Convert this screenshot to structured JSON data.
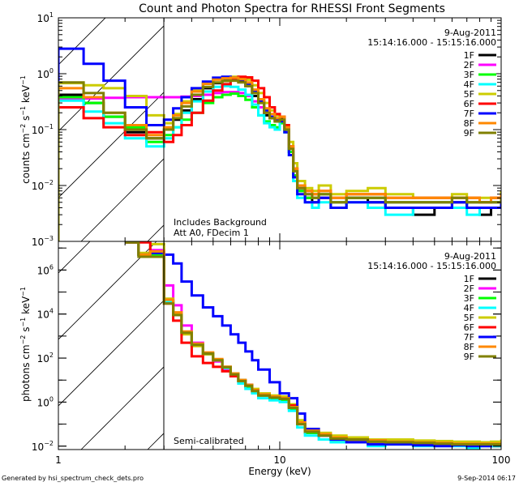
{
  "chart_data": [
    {
      "type": "line",
      "panel": "top",
      "title": "Count and Photon Spectra for RHESSI Front Segments",
      "xlabel": "",
      "ylabel": "counts cm^-2 s^-1 keV^-1",
      "xscale": "log",
      "yscale": "log",
      "xlim": [
        1,
        100
      ],
      "ylim": [
        0.001,
        10
      ],
      "y_tick_labels": [
        "10^-3",
        "10^-2",
        "10^-1",
        "10^0",
        "10^1"
      ],
      "annotation_date": "9-Aug-2011",
      "annotation_time": "15:14:16.000 - 15:15:16.000",
      "annotation_notes": [
        "Includes Background",
        "Att A0, FDecim 1"
      ],
      "legend_position": "top-right",
      "grid": false,
      "energy_keV": [
        1.0,
        1.3,
        1.6,
        2.0,
        2.5,
        3.0,
        3.3,
        3.6,
        4.0,
        4.5,
        5.0,
        5.5,
        6.0,
        6.5,
        7.0,
        7.5,
        8.0,
        8.5,
        9.0,
        9.5,
        10.0,
        10.5,
        11.0,
        11.5,
        12.0,
        13.0,
        14.0,
        15.0,
        17.0,
        20.0,
        25.0,
        30.0,
        40.0,
        50.0,
        60.0,
        70.0,
        80.0,
        90.0,
        100.0
      ],
      "series": [
        {
          "name": "1F",
          "color": "#000000",
          "values": [
            0.42,
            0.3,
            0.17,
            0.09,
            0.07,
            0.1,
            0.15,
            0.22,
            0.35,
            0.55,
            0.68,
            0.75,
            0.78,
            0.72,
            0.6,
            0.4,
            0.25,
            0.18,
            0.16,
            0.14,
            0.16,
            0.1,
            0.04,
            0.015,
            0.008,
            0.006,
            0.005,
            0.006,
            0.004,
            0.006,
            0.005,
            0.004,
            0.003,
            0.004,
            0.005,
            0.004,
            0.003,
            0.004,
            0.005
          ]
        },
        {
          "name": "2F",
          "color": "#ff00ff",
          "values": [
            0.35,
            0.36,
            0.37,
            0.38,
            0.38,
            0.38,
            0.38,
            0.39,
            0.4,
            0.42,
            0.45,
            0.47,
            0.47,
            0.45,
            0.4,
            0.32,
            0.25,
            0.2,
            0.17,
            0.15,
            0.17,
            0.11,
            0.05,
            0.02,
            0.009,
            0.007,
            0.006,
            0.006,
            0.005,
            0.006,
            0.006,
            0.005,
            0.005,
            0.005,
            0.006,
            0.005,
            0.005,
            0.005,
            0.006
          ]
        },
        {
          "name": "3F",
          "color": "#00ff00",
          "values": [
            0.38,
            0.3,
            0.17,
            0.11,
            0.06,
            0.08,
            0.11,
            0.15,
            0.2,
            0.3,
            0.38,
            0.42,
            0.44,
            0.4,
            0.34,
            0.25,
            0.18,
            0.14,
            0.12,
            0.11,
            0.13,
            0.09,
            0.04,
            0.015,
            0.008,
            0.006,
            0.006,
            0.007,
            0.005,
            0.006,
            0.006,
            0.005,
            0.005,
            0.005,
            0.006,
            0.005,
            0.005,
            0.005,
            0.006
          ]
        },
        {
          "name": "4F",
          "color": "#00ffff",
          "values": [
            0.33,
            0.21,
            0.13,
            0.07,
            0.05,
            0.07,
            0.11,
            0.2,
            0.32,
            0.48,
            0.58,
            0.6,
            0.58,
            0.52,
            0.42,
            0.28,
            0.18,
            0.13,
            0.11,
            0.1,
            0.14,
            0.09,
            0.035,
            0.012,
            0.006,
            0.005,
            0.004,
            0.005,
            0.004,
            0.005,
            0.004,
            0.003,
            0.004,
            0.004,
            0.004,
            0.003,
            0.004,
            0.004,
            0.005
          ]
        },
        {
          "name": "5F",
          "color": "#cccc00",
          "values": [
            0.68,
            0.62,
            0.55,
            0.4,
            0.18,
            0.13,
            0.19,
            0.32,
            0.5,
            0.68,
            0.8,
            0.85,
            0.88,
            0.85,
            0.78,
            0.62,
            0.45,
            0.3,
            0.22,
            0.18,
            0.17,
            0.12,
            0.06,
            0.025,
            0.012,
            0.009,
            0.008,
            0.01,
            0.007,
            0.008,
            0.009,
            0.007,
            0.006,
            0.006,
            0.007,
            0.006,
            0.006,
            0.006,
            0.008
          ]
        },
        {
          "name": "6F",
          "color": "#ff0000",
          "values": [
            0.25,
            0.16,
            0.11,
            0.08,
            0.09,
            0.06,
            0.08,
            0.12,
            0.2,
            0.33,
            0.5,
            0.65,
            0.8,
            0.88,
            0.86,
            0.75,
            0.55,
            0.38,
            0.25,
            0.19,
            0.17,
            0.12,
            0.05,
            0.02,
            0.01,
            0.008,
            0.007,
            0.008,
            0.006,
            0.007,
            0.007,
            0.006,
            0.006,
            0.006,
            0.006,
            0.006,
            0.005,
            0.006,
            0.006
          ]
        },
        {
          "name": "7F",
          "color": "#0000ff",
          "values": [
            2.8,
            1.5,
            0.75,
            0.25,
            0.12,
            0.15,
            0.24,
            0.38,
            0.55,
            0.72,
            0.85,
            0.88,
            0.85,
            0.78,
            0.66,
            0.48,
            0.32,
            0.22,
            0.17,
            0.15,
            0.14,
            0.09,
            0.035,
            0.014,
            0.007,
            0.005,
            0.005,
            0.006,
            0.004,
            0.005,
            0.005,
            0.004,
            0.004,
            0.004,
            0.005,
            0.004,
            0.004,
            0.004,
            0.005
          ]
        },
        {
          "name": "8F",
          "color": "#ff8800",
          "values": [
            0.55,
            0.38,
            0.2,
            0.12,
            0.08,
            0.11,
            0.18,
            0.3,
            0.48,
            0.66,
            0.78,
            0.83,
            0.85,
            0.8,
            0.7,
            0.52,
            0.35,
            0.24,
            0.19,
            0.16,
            0.17,
            0.11,
            0.05,
            0.02,
            0.01,
            0.008,
            0.007,
            0.008,
            0.006,
            0.007,
            0.007,
            0.006,
            0.006,
            0.006,
            0.006,
            0.006,
            0.005,
            0.006,
            0.007
          ]
        },
        {
          "name": "9F",
          "color": "#808000",
          "values": [
            0.7,
            0.45,
            0.2,
            0.1,
            0.07,
            0.1,
            0.16,
            0.26,
            0.42,
            0.58,
            0.7,
            0.74,
            0.75,
            0.7,
            0.6,
            0.45,
            0.3,
            0.2,
            0.16,
            0.14,
            0.15,
            0.1,
            0.045,
            0.018,
            0.009,
            0.007,
            0.006,
            0.007,
            0.005,
            0.006,
            0.006,
            0.005,
            0.005,
            0.005,
            0.006,
            0.005,
            0.005,
            0.005,
            0.006
          ]
        }
      ]
    },
    {
      "type": "line",
      "panel": "bottom",
      "title": "",
      "xlabel": "Energy (keV)",
      "ylabel": "photons cm^-2 s^-1 keV^-1",
      "xscale": "log",
      "yscale": "log",
      "xlim": [
        1,
        100
      ],
      "ylim": [
        0.007,
        20000000
      ],
      "x_tick_labels": [
        "1",
        "10",
        "100"
      ],
      "y_tick_labels": [
        "10^-2",
        "10^0",
        "10^2",
        "10^4",
        "10^6"
      ],
      "annotation_date": "9-Aug-2011",
      "annotation_time": "15:14:16.000 - 15:15:16.000",
      "annotation_notes": [
        "Semi-calibrated"
      ],
      "legend_position": "top-right",
      "grid": false,
      "energy_keV": [
        2.0,
        2.3,
        2.6,
        3.0,
        3.3,
        3.6,
        4.0,
        4.5,
        5.0,
        5.5,
        6.0,
        6.5,
        7.0,
        7.5,
        8.0,
        9.0,
        10.0,
        11.0,
        12.0,
        13.0,
        15.0,
        17.0,
        20.0,
        25.0,
        30.0,
        40.0,
        50.0,
        60.0,
        70.0,
        80.0,
        90.0,
        100.0
      ],
      "series": [
        {
          "name": "1F",
          "color": "#000000",
          "values": [
            18000000,
            5000000,
            7000000,
            40000,
            10000,
            1500,
            400,
            150,
            80,
            40,
            20,
            10,
            6,
            3.5,
            2,
            1.5,
            1.3,
            0.6,
            0.1,
            0.04,
            0.03,
            0.02,
            0.02,
            0.015,
            0.015,
            0.012,
            0.012,
            0.012,
            0.01,
            0.012,
            0.01,
            0.012
          ]
        },
        {
          "name": "2F",
          "color": "#ff00ff",
          "values": [
            18000000,
            5000000,
            8000000,
            200000,
            25000,
            3000,
            500,
            150,
            70,
            30,
            15,
            8,
            5,
            3,
            2,
            1.5,
            1.3,
            0.6,
            0.1,
            0.04,
            0.03,
            0.02,
            0.02,
            0.015,
            0.015,
            0.013,
            0.013,
            0.012,
            0.012,
            0.012,
            0.012,
            0.012
          ]
        },
        {
          "name": "3F",
          "color": "#00ff00",
          "values": [
            18000000,
            5000000,
            5000000,
            35000,
            9000,
            1500,
            400,
            150,
            80,
            35,
            18,
            9,
            5,
            3,
            2,
            1.4,
            1.2,
            0.5,
            0.1,
            0.04,
            0.03,
            0.02,
            0.02,
            0.016,
            0.016,
            0.014,
            0.013,
            0.012,
            0.012,
            0.012,
            0.012,
            0.012
          ]
        },
        {
          "name": "4F",
          "color": "#00ffff",
          "values": [
            18000000,
            5000000,
            6000000,
            38000,
            10000,
            1500,
            400,
            160,
            80,
            35,
            15,
            7,
            4,
            2.5,
            1.5,
            1.2,
            1.0,
            0.4,
            0.07,
            0.03,
            0.02,
            0.015,
            0.015,
            0.01,
            0.012,
            0.01,
            0.01,
            0.01,
            0.008,
            0.01,
            0.01,
            0.01
          ]
        },
        {
          "name": "5F",
          "color": "#cccc00",
          "values": [
            18000000,
            6000000,
            15000000,
            50000,
            11000,
            1200,
            350,
            150,
            80,
            40,
            20,
            10,
            6,
            4,
            2.5,
            2,
            1.8,
            0.8,
            0.15,
            0.06,
            0.04,
            0.03,
            0.025,
            0.02,
            0.02,
            0.018,
            0.017,
            0.016,
            0.016,
            0.015,
            0.016,
            0.02
          ]
        },
        {
          "name": "6F",
          "color": "#ff0000",
          "values": [
            18000000,
            18000000,
            6000000,
            30000,
            5000,
            500,
            120,
            60,
            40,
            25,
            15,
            9,
            6,
            3.5,
            2.2,
            1.8,
            1.5,
            0.7,
            0.12,
            0.05,
            0.035,
            0.025,
            0.02,
            0.018,
            0.015,
            0.014,
            0.013,
            0.012,
            0.012,
            0.012,
            0.012,
            0.012
          ]
        },
        {
          "name": "7F",
          "color": "#0000ff",
          "values": [
            18000000,
            5000000,
            6000000,
            5000000,
            2000000,
            300000,
            70000,
            20000,
            8000,
            3000,
            1200,
            500,
            200,
            80,
            30,
            8,
            2.5,
            1.5,
            0.3,
            0.06,
            0.03,
            0.02,
            0.015,
            0.012,
            0.012,
            0.011,
            0.01,
            0.011,
            0.01,
            0.01,
            0.012,
            0.01
          ]
        },
        {
          "name": "8F",
          "color": "#ff8800",
          "values": [
            18000000,
            5000000,
            7000000,
            45000,
            12000,
            1600,
            450,
            180,
            90,
            40,
            20,
            10,
            6,
            3.5,
            2.2,
            1.8,
            1.5,
            0.6,
            0.12,
            0.05,
            0.035,
            0.025,
            0.02,
            0.018,
            0.016,
            0.015,
            0.014,
            0.013,
            0.013,
            0.013,
            0.013,
            0.015
          ]
        },
        {
          "name": "9F",
          "color": "#808000",
          "values": [
            18000000,
            4000000,
            4000000,
            30000,
            9000,
            1400,
            400,
            160,
            80,
            38,
            18,
            9,
            5.5,
            3.2,
            2,
            1.6,
            1.4,
            0.55,
            0.1,
            0.045,
            0.03,
            0.022,
            0.02,
            0.016,
            0.015,
            0.014,
            0.013,
            0.012,
            0.012,
            0.012,
            0.012,
            0.012
          ]
        }
      ]
    }
  ],
  "footer": {
    "generated_by": "Generated by hsi_spectrum_check_dets.pro",
    "timestamp": "9-Sep-2014 06:17"
  }
}
